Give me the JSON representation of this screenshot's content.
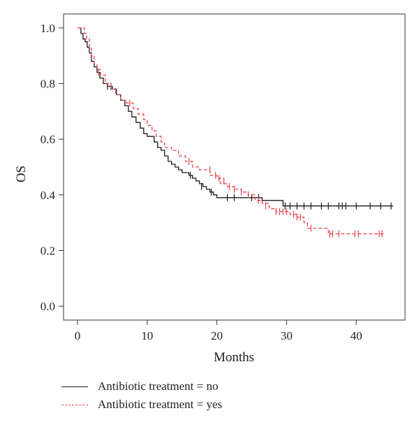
{
  "chart_data": {
    "type": "line",
    "subtype": "kaplan-meier",
    "title": "",
    "xlabel": "Months",
    "ylabel": "OS",
    "xlim": [
      -2,
      47
    ],
    "ylim": [
      -0.05,
      1.05
    ],
    "xticks": [
      0,
      10,
      20,
      30,
      40
    ],
    "xtick_labels": [
      "0",
      "10",
      "20",
      "30",
      "40"
    ],
    "yticks": [
      0,
      0.2,
      0.4,
      0.6,
      0.8,
      1
    ],
    "ytick_labels": [
      "0.0",
      "0.2",
      "0.4",
      "0.6",
      "0.8",
      "1.0"
    ],
    "grid": false,
    "legend_position": "bottom-left",
    "series": [
      {
        "name": "Antibiotic treatment = no",
        "color": "#1a1a1a",
        "dash": "solid",
        "steps": [
          [
            0,
            1.0
          ],
          [
            0.5,
            0.98
          ],
          [
            0.8,
            0.96
          ],
          [
            1.1,
            0.95
          ],
          [
            1.4,
            0.93
          ],
          [
            1.7,
            0.91
          ],
          [
            2.0,
            0.88
          ],
          [
            2.4,
            0.86
          ],
          [
            2.8,
            0.84
          ],
          [
            3.2,
            0.82
          ],
          [
            3.7,
            0.8
          ],
          [
            4.3,
            0.79
          ],
          [
            5.0,
            0.78
          ],
          [
            5.6,
            0.76
          ],
          [
            6.2,
            0.74
          ],
          [
            6.8,
            0.72
          ],
          [
            7.3,
            0.7
          ],
          [
            7.8,
            0.68
          ],
          [
            8.4,
            0.66
          ],
          [
            9.0,
            0.64
          ],
          [
            9.5,
            0.62
          ],
          [
            10.0,
            0.61
          ],
          [
            11.0,
            0.59
          ],
          [
            11.5,
            0.57
          ],
          [
            12.0,
            0.56
          ],
          [
            12.5,
            0.54
          ],
          [
            13.0,
            0.52
          ],
          [
            13.5,
            0.51
          ],
          [
            14.0,
            0.5
          ],
          [
            14.5,
            0.49
          ],
          [
            15.0,
            0.48
          ],
          [
            16.0,
            0.47
          ],
          [
            16.5,
            0.46
          ],
          [
            17.0,
            0.45
          ],
          [
            17.5,
            0.44
          ],
          [
            18.0,
            0.43
          ],
          [
            18.5,
            0.42
          ],
          [
            19.0,
            0.41
          ],
          [
            19.5,
            0.4
          ],
          [
            20.0,
            0.39
          ],
          [
            26.5,
            0.38
          ],
          [
            29.5,
            0.36
          ],
          [
            45.3,
            0.36
          ]
        ],
        "censored": [
          [
            4.3,
            0.79
          ],
          [
            4.8,
            0.79
          ],
          [
            16.2,
            0.47
          ],
          [
            17.8,
            0.43
          ],
          [
            19.2,
            0.41
          ],
          [
            21.5,
            0.39
          ],
          [
            22.5,
            0.39
          ],
          [
            25.0,
            0.39
          ],
          [
            26.0,
            0.39
          ],
          [
            29.8,
            0.36
          ],
          [
            30.5,
            0.36
          ],
          [
            31.5,
            0.36
          ],
          [
            32.5,
            0.36
          ],
          [
            33.5,
            0.36
          ],
          [
            35.0,
            0.36
          ],
          [
            36.0,
            0.36
          ],
          [
            37.5,
            0.36
          ],
          [
            38.0,
            0.36
          ],
          [
            38.5,
            0.36
          ],
          [
            40.0,
            0.36
          ],
          [
            42.0,
            0.36
          ],
          [
            43.5,
            0.36
          ],
          [
            45.0,
            0.36
          ]
        ]
      },
      {
        "name": "Antibiotic treatment = yes",
        "color": "#e8454f",
        "dash": "dashed",
        "steps": [
          [
            0,
            1.0
          ],
          [
            1.0,
            0.98
          ],
          [
            1.3,
            0.96
          ],
          [
            1.7,
            0.93
          ],
          [
            2.0,
            0.9
          ],
          [
            2.4,
            0.87
          ],
          [
            2.8,
            0.85
          ],
          [
            3.3,
            0.83
          ],
          [
            4.0,
            0.8
          ],
          [
            4.8,
            0.78
          ],
          [
            5.5,
            0.76
          ],
          [
            6.2,
            0.74
          ],
          [
            7.0,
            0.73
          ],
          [
            8.0,
            0.71
          ],
          [
            8.7,
            0.69
          ],
          [
            9.5,
            0.67
          ],
          [
            10.0,
            0.65
          ],
          [
            10.7,
            0.63
          ],
          [
            11.3,
            0.61
          ],
          [
            12.0,
            0.59
          ],
          [
            12.5,
            0.57
          ],
          [
            13.5,
            0.56
          ],
          [
            14.5,
            0.54
          ],
          [
            15.5,
            0.52
          ],
          [
            16.5,
            0.5
          ],
          [
            17.5,
            0.49
          ],
          [
            19.0,
            0.47
          ],
          [
            20.0,
            0.46
          ],
          [
            20.5,
            0.44
          ],
          [
            21.5,
            0.43
          ],
          [
            22.5,
            0.42
          ],
          [
            23.5,
            0.41
          ],
          [
            24.5,
            0.4
          ],
          [
            25.5,
            0.38
          ],
          [
            26.5,
            0.37
          ],
          [
            27.5,
            0.35
          ],
          [
            28.5,
            0.34
          ],
          [
            30.5,
            0.33
          ],
          [
            31.5,
            0.32
          ],
          [
            32.5,
            0.3
          ],
          [
            33.0,
            0.28
          ],
          [
            36.0,
            0.26
          ],
          [
            44.0,
            0.26
          ]
        ],
        "censored": [
          [
            3.0,
            0.84
          ],
          [
            7.5,
            0.73
          ],
          [
            16.0,
            0.52
          ],
          [
            19.0,
            0.49
          ],
          [
            19.8,
            0.47
          ],
          [
            20.3,
            0.46
          ],
          [
            21.0,
            0.45
          ],
          [
            21.8,
            0.43
          ],
          [
            22.5,
            0.42
          ],
          [
            23.5,
            0.41
          ],
          [
            24.5,
            0.4
          ],
          [
            26.0,
            0.38
          ],
          [
            27.0,
            0.36
          ],
          [
            28.5,
            0.34
          ],
          [
            29.0,
            0.34
          ],
          [
            29.5,
            0.34
          ],
          [
            30.0,
            0.34
          ],
          [
            31.0,
            0.33
          ],
          [
            31.5,
            0.32
          ],
          [
            32.0,
            0.32
          ],
          [
            33.5,
            0.28
          ],
          [
            36.2,
            0.26
          ],
          [
            36.6,
            0.26
          ],
          [
            37.5,
            0.26
          ],
          [
            39.8,
            0.26
          ],
          [
            40.3,
            0.26
          ],
          [
            43.3,
            0.26
          ],
          [
            43.7,
            0.26
          ]
        ]
      }
    ]
  }
}
